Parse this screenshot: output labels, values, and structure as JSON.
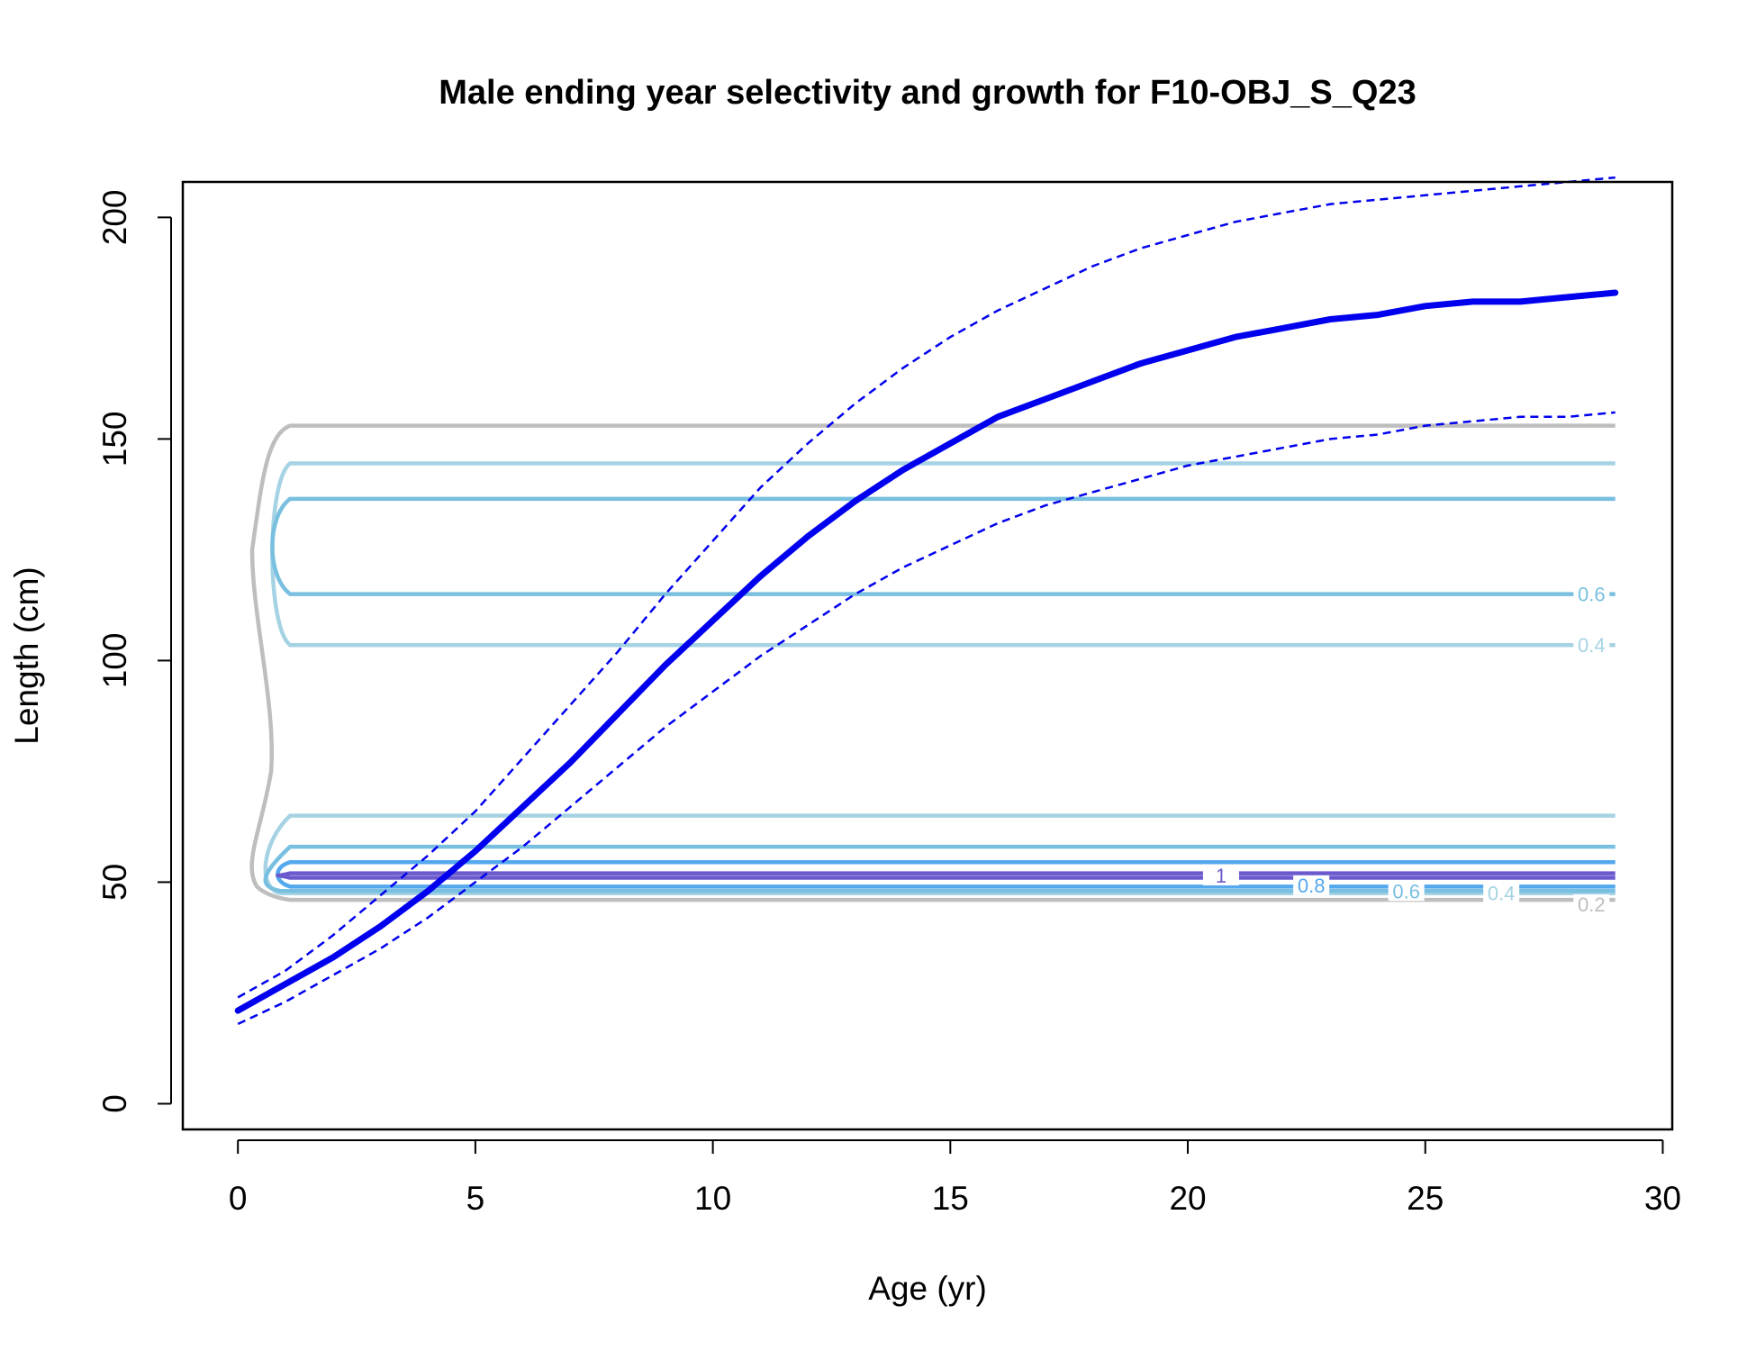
{
  "chart_data": {
    "type": "line",
    "title": "Male ending year selectivity and growth for F10-OBJ_S_Q23",
    "xlabel": "Age (yr)",
    "ylabel": "Length (cm)",
    "xlim": [
      -1.16,
      30.2
    ],
    "ylim": [
      -5.8,
      208
    ],
    "x_ticks": [
      0,
      5,
      10,
      15,
      20,
      25,
      30
    ],
    "y_ticks": [
      0,
      50,
      100,
      150,
      200
    ],
    "grid": false,
    "legend": "none",
    "growth_mean": {
      "color": "#0000ee",
      "x": [
        0,
        1,
        2,
        3,
        4,
        5,
        6,
        7,
        8,
        9,
        10,
        11,
        12,
        13,
        14,
        15,
        16,
        17,
        18,
        19,
        20,
        21,
        22,
        23,
        24,
        25,
        26,
        27,
        28,
        29
      ],
      "y": [
        21,
        27,
        33,
        40,
        48,
        57,
        67,
        77,
        88,
        99,
        109,
        119,
        128,
        136,
        143,
        149,
        155,
        159,
        163,
        167,
        170,
        173,
        175,
        177,
        178,
        180,
        181,
        181,
        182,
        183
      ]
    },
    "growth_upper": {
      "color": "#0000ee",
      "x": [
        0,
        1,
        2,
        3,
        4,
        5,
        6,
        7,
        8,
        9,
        10,
        11,
        12,
        13,
        14,
        15,
        16,
        17,
        18,
        19,
        20,
        21,
        22,
        23,
        24,
        25,
        26,
        27,
        28,
        29
      ],
      "y": [
        24,
        30,
        38,
        47,
        56,
        66,
        78,
        90,
        102,
        115,
        127,
        139,
        149,
        158,
        166,
        173,
        179,
        184,
        189,
        193,
        196,
        199,
        201,
        203,
        204,
        205,
        206,
        207,
        208,
        209
      ]
    },
    "growth_lower": {
      "color": "#0000ee",
      "x": [
        0,
        1,
        2,
        3,
        4,
        5,
        6,
        7,
        8,
        9,
        10,
        11,
        12,
        13,
        14,
        15,
        16,
        17,
        18,
        19,
        20,
        21,
        22,
        23,
        24,
        25,
        26,
        27,
        28,
        29
      ],
      "y": [
        18,
        23,
        29,
        35,
        42,
        50,
        58,
        67,
        76,
        85,
        93,
        101,
        108,
        115,
        121,
        126,
        131,
        135,
        138,
        141,
        144,
        146,
        148,
        150,
        151,
        153,
        154,
        155,
        155,
        156
      ]
    },
    "selectivity_contours": {
      "levels": [
        0.2,
        0.4,
        0.6,
        0.8,
        1
      ],
      "colors": {
        "0.2": "#bebebe",
        "0.4": "#a6d3e3",
        "0.6": "#79c0e0",
        "0.8": "#54a8ee",
        "1": "#6a5acd"
      },
      "bands": [
        {
          "level": 0.2,
          "upper": 153,
          "lower": 46
        },
        {
          "level": 0.4,
          "upper": 144.5,
          "lower": 65,
          "upper2": 103.5
        },
        {
          "level": 0.6,
          "upper": 136.5,
          "lower": 58,
          "upper2": 115
        },
        {
          "level": 0.8,
          "upper": 54.5,
          "lower": 49
        },
        {
          "level": 1,
          "upper": 52,
          "lower": 51
        }
      ],
      "labels": [
        {
          "text": "0.6",
          "age": 28.5,
          "length": 115,
          "level": 0.6
        },
        {
          "text": "0.4",
          "age": 28.5,
          "length": 103.5,
          "level": 0.4
        },
        {
          "text": "0.2",
          "age": 28.5,
          "length": 45,
          "level": 0.2
        },
        {
          "text": "0.4",
          "age": 26.6,
          "length": 47.5,
          "level": 0.4
        },
        {
          "text": "0.6",
          "age": 24.6,
          "length": 48,
          "level": 0.6
        },
        {
          "text": "0.8",
          "age": 22.6,
          "length": 49.3,
          "level": 0.8
        },
        {
          "text": "1",
          "age": 20.7,
          "length": 51.5,
          "level": 1
        }
      ]
    }
  }
}
